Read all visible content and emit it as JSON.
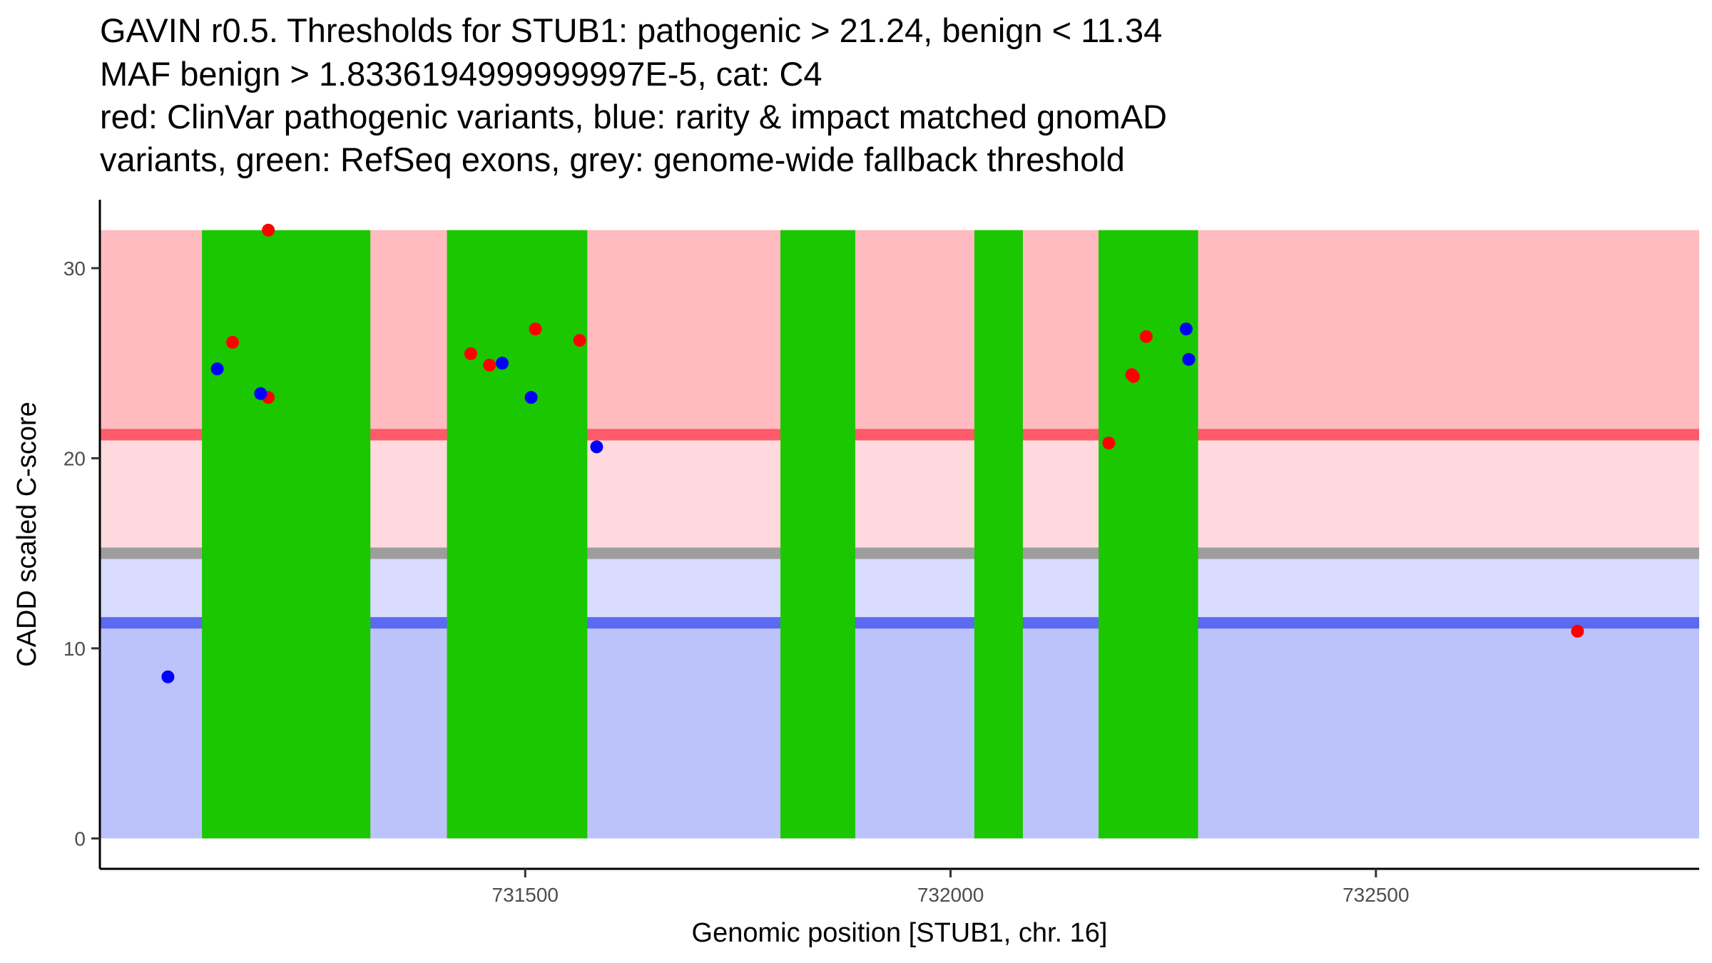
{
  "chart_data": {
    "type": "scatter",
    "title_lines": [
      "GAVIN r0.5. Thresholds for STUB1: pathogenic > 21.24, benign < 11.34",
      "MAF benign > 1.8336194999999997E-5, cat: C4",
      "red: ClinVar pathogenic variants, blue: rarity & impact matched gnomAD",
      "variants, green: RefSeq exons, grey: genome-wide fallback threshold"
    ],
    "xlabel": "Genomic position [STUB1, chr. 16]",
    "ylabel": "CADD scaled C-score",
    "xlim": [
      731000,
      732880
    ],
    "ylim": [
      -1.6,
      33.6
    ],
    "x_ticks": [
      731500,
      732000,
      732500
    ],
    "y_ticks": [
      0,
      10,
      20,
      30
    ],
    "regions": {
      "pathogenic_band": {
        "from": 21.24,
        "to": 32.0,
        "color": "#ffbbc0"
      },
      "uncertain_upper_band": {
        "from": 15.0,
        "to": 21.24,
        "color": "#ffd9dd"
      },
      "uncertain_lower_band": {
        "from": 11.34,
        "to": 15.0,
        "color": "#d9dbff"
      },
      "benign_band": {
        "from": 0,
        "to": 11.34,
        "color": "#bcc2fa"
      }
    },
    "thresholds": [
      {
        "name": "pathogenic",
        "value": 21.24,
        "color": "#ff5a6a"
      },
      {
        "name": "genome-wide fallback",
        "value": 15.0,
        "color": "#9d9d9d"
      },
      {
        "name": "benign",
        "value": 11.34,
        "color": "#5b6af0"
      }
    ],
    "exons": [
      {
        "start": 731120,
        "end": 731318,
        "color": "#1bc700"
      },
      {
        "start": 731408,
        "end": 731573,
        "color": "#1bc700"
      },
      {
        "start": 731800,
        "end": 731888,
        "color": "#1bc700"
      },
      {
        "start": 732028,
        "end": 732085,
        "color": "#1bc700"
      },
      {
        "start": 732174,
        "end": 732291,
        "color": "#1bc700"
      }
    ],
    "series": [
      {
        "name": "ClinVar pathogenic variants",
        "color": "#ff0000",
        "points": [
          {
            "x": 731156,
            "y": 26.1
          },
          {
            "x": 731198,
            "y": 32.0
          },
          {
            "x": 731198,
            "y": 23.2
          },
          {
            "x": 731436,
            "y": 25.5
          },
          {
            "x": 731458,
            "y": 24.9
          },
          {
            "x": 731512,
            "y": 26.8
          },
          {
            "x": 731564,
            "y": 26.2
          },
          {
            "x": 732186,
            "y": 20.8
          },
          {
            "x": 732213,
            "y": 24.4
          },
          {
            "x": 732215,
            "y": 24.3
          },
          {
            "x": 732230,
            "y": 26.4
          },
          {
            "x": 732737,
            "y": 10.9
          }
        ]
      },
      {
        "name": "rarity & impact matched gnomAD variants",
        "color": "#0000ff",
        "points": [
          {
            "x": 731080,
            "y": 8.5
          },
          {
            "x": 731138,
            "y": 24.7
          },
          {
            "x": 731189,
            "y": 23.4
          },
          {
            "x": 731473,
            "y": 25.0
          },
          {
            "x": 731507,
            "y": 23.2
          },
          {
            "x": 731584,
            "y": 20.6
          },
          {
            "x": 732277,
            "y": 26.8
          },
          {
            "x": 732280,
            "y": 25.2
          }
        ]
      }
    ]
  }
}
